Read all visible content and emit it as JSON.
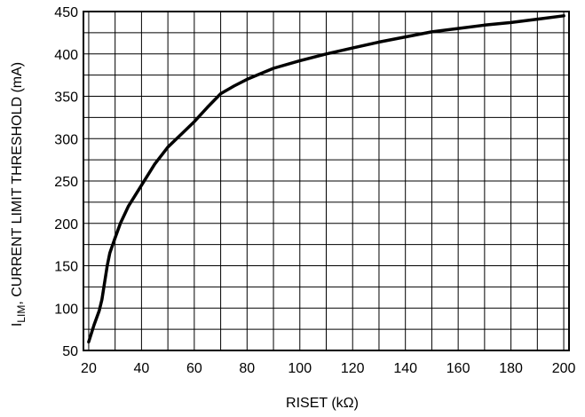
{
  "chart_data": {
    "type": "line",
    "xlabel": "RISET (kΩ)",
    "ylabel": {
      "prefix": "I",
      "subscript": "LIM",
      "suffix": ", CURRENT LIMIT THRESHOLD (mA)"
    },
    "xlim": [
      18,
      202
    ],
    "ylim": [
      50,
      450
    ],
    "x_ticks": [
      20,
      40,
      60,
      80,
      100,
      120,
      140,
      160,
      180,
      200
    ],
    "y_ticks": [
      50,
      100,
      150,
      200,
      250,
      300,
      350,
      400,
      450
    ],
    "x_grid_step": 10,
    "y_grid_step": 25,
    "grid": true,
    "series": [
      {
        "color": "#000000",
        "x": [
          20,
          22,
          24,
          25,
          26,
          27,
          28,
          30,
          32,
          35,
          40,
          45,
          50,
          55,
          60,
          65,
          70,
          75,
          80,
          90,
          100,
          110,
          120,
          130,
          140,
          150,
          160,
          170,
          180,
          190,
          200
        ],
        "y": [
          60,
          80,
          97,
          110,
          130,
          150,
          165,
          183,
          200,
          220,
          245,
          270,
          290,
          305,
          320,
          337,
          353,
          362,
          370,
          383,
          392,
          400,
          407,
          414,
          420,
          426,
          430,
          434,
          437,
          441,
          445
        ]
      }
    ]
  }
}
